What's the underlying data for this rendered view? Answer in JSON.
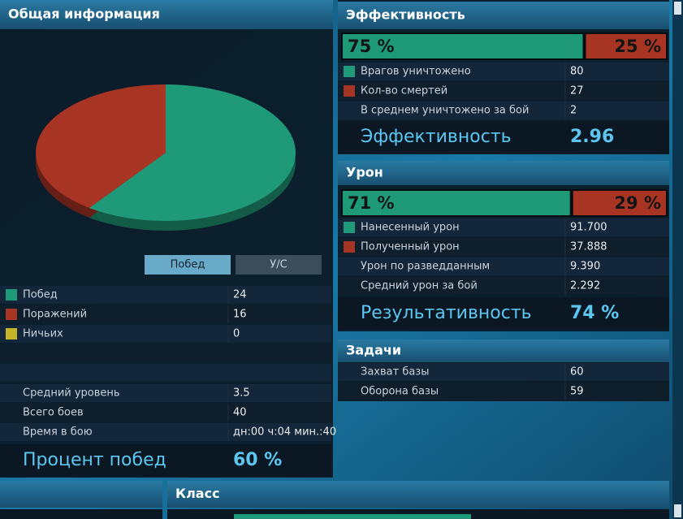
{
  "general": {
    "title": "Общая информация",
    "tabs": [
      "Побед",
      "У/С"
    ],
    "rows": [
      {
        "label": "Побед",
        "value": 24,
        "color": "#1f9a78"
      },
      {
        "label": "Поражений",
        "value": 16,
        "color": "#a83424"
      },
      {
        "label": "Ничьих",
        "value": 0,
        "color": "#c8b428"
      }
    ],
    "extra_rows": [
      {
        "label": "Средний уровень",
        "value": "3.5"
      },
      {
        "label": "Всего боев",
        "value": "40"
      },
      {
        "label": "Время в бою",
        "value": "дн:00 ч:04 мин.:40"
      }
    ],
    "summary": {
      "label": "Процент побед",
      "value": "60 %"
    }
  },
  "efficiency": {
    "title": "Эффективность",
    "bar": [
      {
        "value": 75,
        "label": "75 %",
        "color": "#1f9a78"
      },
      {
        "value": 25,
        "label": "25 %",
        "color": "#a83424"
      }
    ],
    "rows": [
      {
        "label": "Врагов уничтожено",
        "value": "80",
        "color": "#1f9a78"
      },
      {
        "label": "Кол-во смертей",
        "value": "27",
        "color": "#a83424"
      },
      {
        "label": "В среднем уничтожено за бой",
        "value": "2"
      }
    ],
    "summary": {
      "label": "Эффективность",
      "value": "2.96"
    }
  },
  "damage": {
    "title": "Урон",
    "bar": [
      {
        "value": 71,
        "label": "71 %",
        "color": "#1f9a78"
      },
      {
        "value": 29,
        "label": "29 %",
        "color": "#a83424"
      }
    ],
    "rows": [
      {
        "label": "Нанесенный урон",
        "value": "91.700",
        "color": "#1f9a78"
      },
      {
        "label": "Полученный урон",
        "value": "37.888",
        "color": "#a83424"
      },
      {
        "label": "Урон по разведданным",
        "value": "9.390"
      },
      {
        "label": "Средний урон за бой",
        "value": "2.292"
      }
    ],
    "summary": {
      "label": "Результативность",
      "value": "74 %"
    }
  },
  "tasks": {
    "title": "Задачи",
    "rows": [
      {
        "label": "Захват базы",
        "value": "60"
      },
      {
        "label": "Оборона базы",
        "value": "59"
      }
    ]
  },
  "class": {
    "title": "Класс"
  }
}
